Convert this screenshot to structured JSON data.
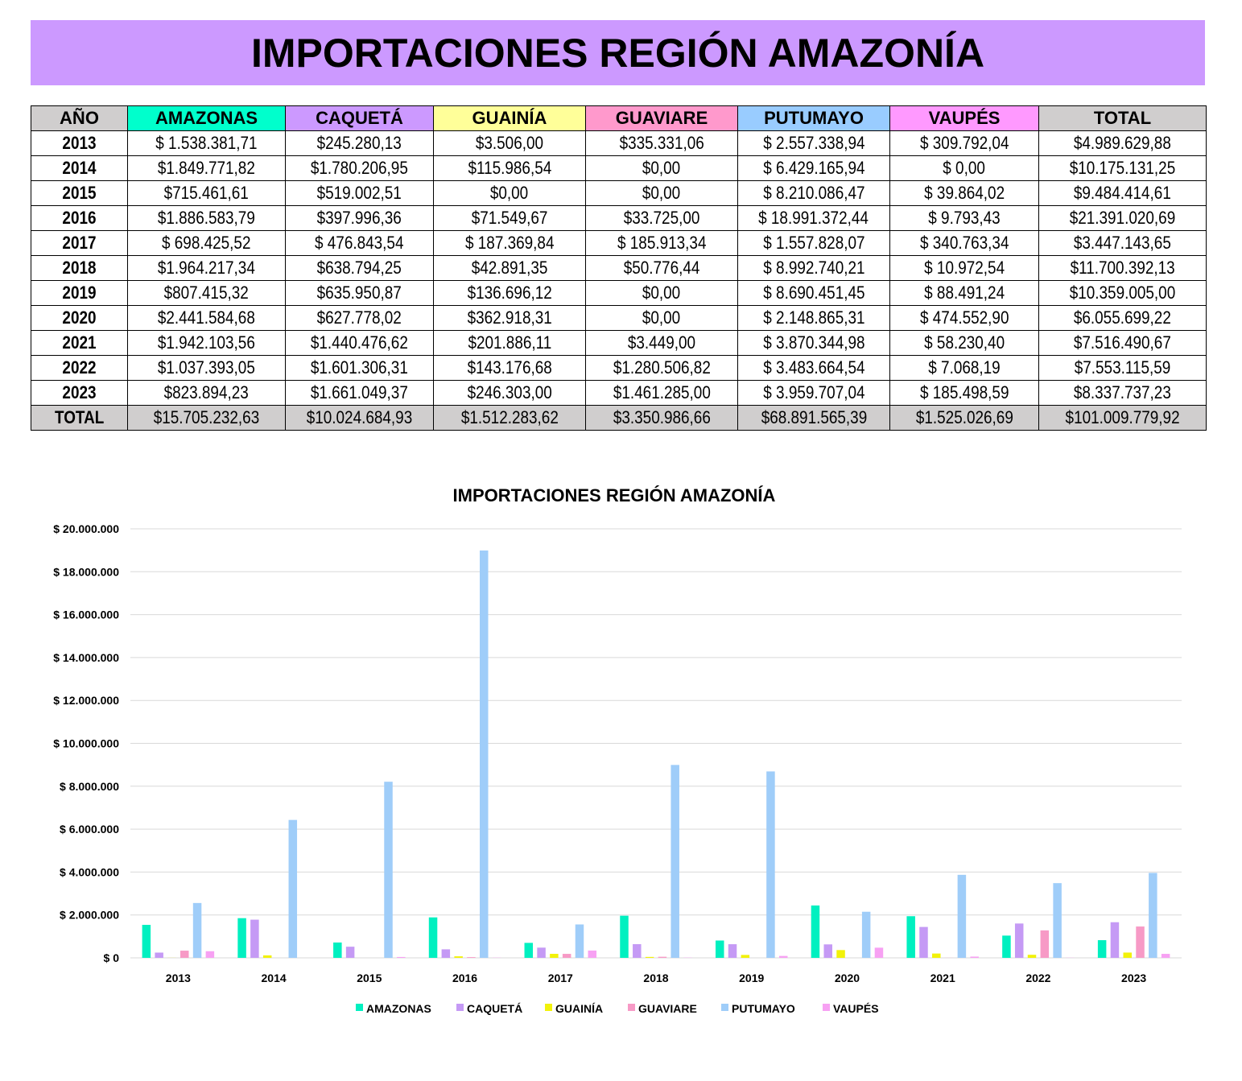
{
  "header": {
    "title": "IMPORTACIONES REGIÓN AMAZONÍA"
  },
  "table": {
    "columns": [
      {
        "label": "AÑO",
        "color": "#d0cece"
      },
      {
        "label": "AMAZONAS",
        "color": "#00ffcc"
      },
      {
        "label": "CAQUETÁ",
        "color": "#cc99ff"
      },
      {
        "label": "GUAINÍA",
        "color": "#ffff99"
      },
      {
        "label": "GUAVIARE",
        "color": "#ff99cc"
      },
      {
        "label": "PUTUMAYO",
        "color": "#99ccff"
      },
      {
        "label": "VAUPÉS",
        "color": "#ff99ff"
      },
      {
        "label": "TOTAL",
        "color": "#d0cece"
      }
    ],
    "rows": [
      [
        "2013",
        "$ 1.538.381,71",
        "$245.280,13",
        "$3.506,00",
        "$335.331,06",
        "$ 2.557.338,94",
        "$ 309.792,04",
        "$4.989.629,88"
      ],
      [
        "2014",
        "$1.849.771,82",
        "$1.780.206,95",
        "$115.986,54",
        "$0,00",
        "$ 6.429.165,94",
        "$ 0,00",
        "$10.175.131,25"
      ],
      [
        "2015",
        "$715.461,61",
        "$519.002,51",
        "$0,00",
        "$0,00",
        "$ 8.210.086,47",
        "$ 39.864,02",
        "$9.484.414,61"
      ],
      [
        "2016",
        "$1.886.583,79",
        "$397.996,36",
        "$71.549,67",
        "$33.725,00",
        "$ 18.991.372,44",
        "$ 9.793,43",
        "$21.391.020,69"
      ],
      [
        "2017",
        "$ 698.425,52",
        "$ 476.843,54",
        "$ 187.369,84",
        "$ 185.913,34",
        "$ 1.557.828,07",
        "$ 340.763,34",
        "$3.447.143,65"
      ],
      [
        "2018",
        "$1.964.217,34",
        "$638.794,25",
        "$42.891,35",
        "$50.776,44",
        "$ 8.992.740,21",
        "$ 10.972,54",
        "$11.700.392,13"
      ],
      [
        "2019",
        "$807.415,32",
        "$635.950,87",
        "$136.696,12",
        "$0,00",
        "$ 8.690.451,45",
        "$ 88.491,24",
        "$10.359.005,00"
      ],
      [
        "2020",
        "$2.441.584,68",
        "$627.778,02",
        "$362.918,31",
        "$0,00",
        "$ 2.148.865,31",
        "$ 474.552,90",
        "$6.055.699,22"
      ],
      [
        "2021",
        "$1.942.103,56",
        "$1.440.476,62",
        "$201.886,11",
        "$3.449,00",
        "$ 3.870.344,98",
        "$ 58.230,40",
        "$7.516.490,67"
      ],
      [
        "2022",
        "$1.037.393,05",
        "$1.601.306,31",
        "$143.176,68",
        "$1.280.506,82",
        "$ 3.483.664,54",
        "$ 7.068,19",
        "$7.553.115,59"
      ],
      [
        "2023",
        "$823.894,23",
        "$1.661.049,37",
        "$246.303,00",
        "$1.461.285,00",
        "$ 3.959.707,04",
        "$ 185.498,59",
        "$8.337.737,23"
      ]
    ],
    "total_row": [
      "TOTAL",
      "$15.705.232,63",
      "$10.024.684,93",
      "$1.512.283,62",
      "$3.350.986,66",
      "$68.891.565,39",
      "$1.525.026,69",
      "$101.009.779,92"
    ]
  },
  "chart_data": {
    "type": "bar",
    "title": "IMPORTACIONES REGIÓN AMAZONÍA",
    "categories": [
      "2013",
      "2014",
      "2015",
      "2016",
      "2017",
      "2018",
      "2019",
      "2020",
      "2021",
      "2022",
      "2023"
    ],
    "series": [
      {
        "name": "AMAZONAS",
        "color": "#00f0c0",
        "values": [
          1538381.71,
          1849771.82,
          715461.61,
          1886583.79,
          698425.52,
          1964217.34,
          807415.32,
          2441584.68,
          1942103.56,
          1037393.05,
          823894.23
        ]
      },
      {
        "name": "CAQUETÁ",
        "color": "#c59af5",
        "values": [
          245280.13,
          1780206.95,
          519002.51,
          397996.36,
          476843.54,
          638794.25,
          635950.87,
          627778.02,
          1440476.62,
          1601306.31,
          1661049.37
        ]
      },
      {
        "name": "GUAINÍA",
        "color": "#f2f20a",
        "values": [
          3506.0,
          115986.54,
          0,
          71549.67,
          187369.84,
          42891.35,
          136696.12,
          362918.31,
          201886.11,
          143176.68,
          246303.0
        ]
      },
      {
        "name": "GUAVIARE",
        "color": "#f79ac6",
        "values": [
          335331.06,
          0,
          0,
          33725.0,
          185913.34,
          50776.44,
          0,
          0,
          3449.0,
          1280506.82,
          1461285.0
        ]
      },
      {
        "name": "PUTUMAYO",
        "color": "#9fcdf9",
        "values": [
          2557338.94,
          6429165.94,
          8210086.47,
          18991372.44,
          1557828.07,
          8992740.21,
          8690451.45,
          2148865.31,
          3870344.98,
          3483664.54,
          3959707.04
        ]
      },
      {
        "name": "VAUPÉS",
        "color": "#f7a1f3",
        "values": [
          309792.04,
          0,
          39864.02,
          9793.43,
          340763.34,
          10972.54,
          88491.24,
          474552.9,
          58230.4,
          7068.19,
          185498.59
        ]
      }
    ],
    "ylim": [
      0,
      20000000
    ],
    "yticks": [
      {
        "value": 0,
        "label": "$ 0"
      },
      {
        "value": 2000000,
        "label": "$ 2.000.000"
      },
      {
        "value": 4000000,
        "label": "$ 4.000.000"
      },
      {
        "value": 6000000,
        "label": "$ 6.000.000"
      },
      {
        "value": 8000000,
        "label": "$ 8.000.000"
      },
      {
        "value": 10000000,
        "label": "$ 10.000.000"
      },
      {
        "value": 12000000,
        "label": "$ 12.000.000"
      },
      {
        "value": 14000000,
        "label": "$ 14.000.000"
      },
      {
        "value": 16000000,
        "label": "$ 16.000.000"
      },
      {
        "value": 18000000,
        "label": "$ 18.000.000"
      },
      {
        "value": 20000000,
        "label": "$ 20.000.000"
      }
    ],
    "grid": true,
    "legend": "bottom"
  }
}
